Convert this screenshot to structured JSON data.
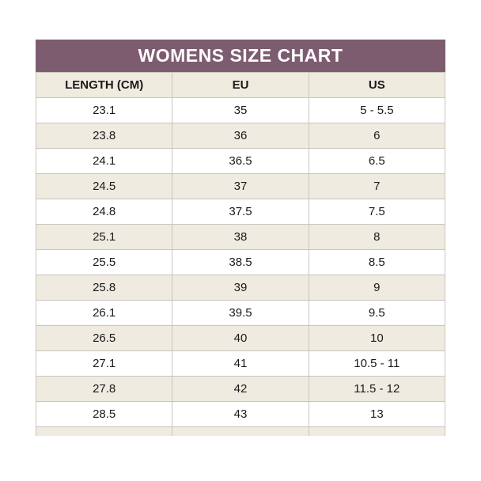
{
  "title": "WOMENS SIZE CHART",
  "theme": {
    "title_bg": "#7d5c70",
    "title_text": "#ffffff",
    "header_row_bg": "#f0ebdf",
    "alt_row_bg": "#f0ebe1",
    "row_bg": "#ffffff",
    "border_color": "#c9c5bd"
  },
  "chart_data": {
    "type": "table",
    "title": "WOMENS SIZE CHART",
    "columns": [
      "LENGTH (CM)",
      "EU",
      "US"
    ],
    "rows": [
      [
        "23.1",
        "35",
        "5 - 5.5"
      ],
      [
        "23.8",
        "36",
        "6"
      ],
      [
        "24.1",
        "36.5",
        "6.5"
      ],
      [
        "24.5",
        "37",
        "7"
      ],
      [
        "24.8",
        "37.5",
        "7.5"
      ],
      [
        "25.1",
        "38",
        "8"
      ],
      [
        "25.5",
        "38.5",
        "8.5"
      ],
      [
        "25.8",
        "39",
        "9"
      ],
      [
        "26.1",
        "39.5",
        "9.5"
      ],
      [
        "26.5",
        "40",
        "10"
      ],
      [
        "27.1",
        "41",
        "10.5 - 11"
      ],
      [
        "27.8",
        "42",
        "11.5 - 12"
      ],
      [
        "28.5",
        "43",
        "13"
      ]
    ]
  }
}
